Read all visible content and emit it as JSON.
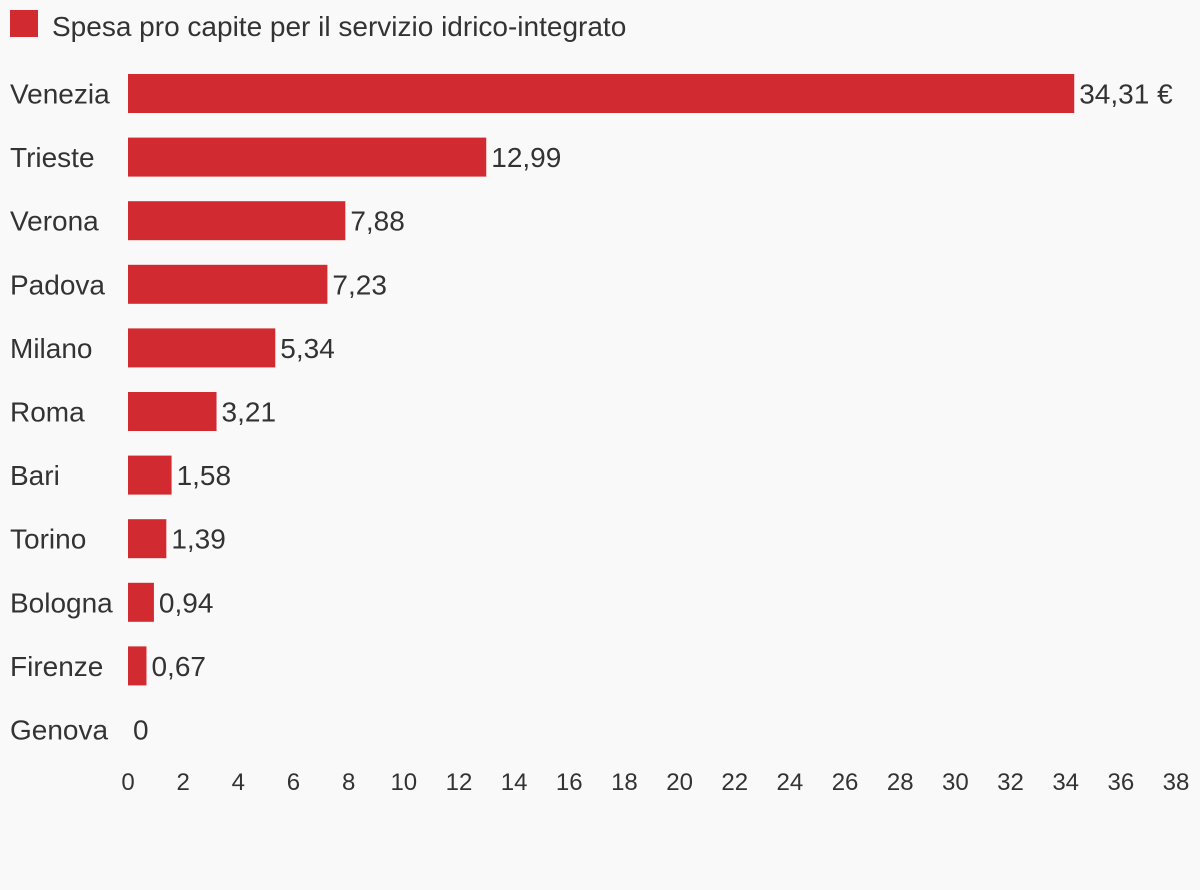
{
  "chart_data": {
    "type": "bar",
    "orientation": "horizontal",
    "series": [
      {
        "name": "Spesa pro capite per il servizio idrico-integrato",
        "color": "#d12b31",
        "values": [
          34.31,
          12.99,
          7.88,
          7.23,
          5.34,
          3.21,
          1.58,
          1.39,
          0.94,
          0.67,
          0
        ]
      }
    ],
    "categories": [
      "Venezia",
      "Trieste",
      "Verona",
      "Padova",
      "Milano",
      "Roma",
      "Bari",
      "Torino",
      "Bologna",
      "Firenze",
      "Genova"
    ],
    "value_labels": [
      "34,31 €",
      "12,99",
      "7,88",
      "7,23",
      "5,34",
      "3,21",
      "1,58",
      "1,39",
      "0,94",
      "0,67",
      "0"
    ],
    "x_ticks": [
      0,
      2,
      4,
      6,
      8,
      10,
      12,
      14,
      16,
      18,
      20,
      22,
      24,
      26,
      28,
      30,
      32,
      34,
      36,
      38
    ],
    "xlim": [
      0,
      38
    ],
    "grid": false,
    "legend_position": "top-left"
  }
}
